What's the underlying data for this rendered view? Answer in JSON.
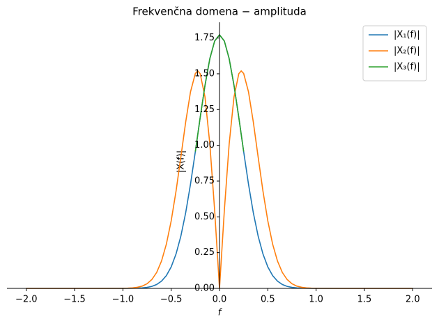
{
  "chart_data": {
    "type": "line",
    "title": "Frekvenčna domena − amplituda",
    "x_label": "f",
    "y_label": "|X(f)|",
    "x": [
      -2,
      -1.5,
      -1.25,
      -1,
      -0.95,
      -0.9,
      -0.85,
      -0.8,
      -0.75,
      -0.7,
      -0.65,
      -0.6,
      -0.55,
      -0.5,
      -0.45,
      -0.4,
      -0.35,
      -0.3,
      -0.25,
      -0.225,
      -0.2,
      -0.15,
      -0.1,
      -0.05,
      0,
      0.05,
      0.1,
      0.15,
      0.2,
      0.225,
      0.25,
      0.3,
      0.35,
      0.4,
      0.45,
      0.5,
      0.55,
      0.6,
      0.65,
      0.7,
      0.75,
      0.8,
      0.85,
      0.9,
      0.95,
      1,
      1.25,
      1.5,
      2
    ],
    "series": [
      {
        "name": "|X₁(f)|",
        "color": "#1f77b4",
        "values": [
          0,
          0,
          0,
          0.0001,
          0.0002,
          0.0006,
          0.0014,
          0.0032,
          0.0069,
          0.0141,
          0.0274,
          0.0508,
          0.0895,
          0.1503,
          0.2402,
          0.3654,
          0.529,
          0.7291,
          0.9565,
          1.0754,
          1.1944,
          1.4196,
          1.6059,
          1.7293,
          1.7725,
          1.7293,
          1.6059,
          1.4196,
          1.1944,
          1.0754,
          0.9565,
          0.7291,
          0.529,
          0.3654,
          0.2402,
          0.1503,
          0.0895,
          0.0508,
          0.0274,
          0.0141,
          0.0069,
          0.0032,
          0.0014,
          0.0006,
          0.0002,
          0.0001,
          0,
          0,
          0
        ]
      },
      {
        "name": "|X₂(f)|",
        "color": "#ff7f0e",
        "values": [
          0,
          0,
          0,
          0.0006,
          0.0014,
          0.0034,
          0.0075,
          0.0161,
          0.0325,
          0.062,
          0.1119,
          0.1915,
          0.3093,
          0.4722,
          0.6791,
          0.9183,
          1.1633,
          1.3743,
          1.5025,
          1.5203,
          1.5009,
          1.3379,
          1.009,
          0.5433,
          0,
          0.5433,
          1.009,
          1.3379,
          1.5009,
          1.5203,
          1.5025,
          1.3743,
          1.1633,
          0.9183,
          0.6791,
          0.4722,
          0.3093,
          0.1915,
          0.1119,
          0.062,
          0.0325,
          0.0161,
          0.0075,
          0.0034,
          0.0014,
          0.0006,
          0,
          0,
          0
        ]
      },
      {
        "name": "|X₃(f)|",
        "color": "#2ca02c",
        "values": [
          null,
          null,
          null,
          null,
          null,
          null,
          null,
          null,
          null,
          null,
          null,
          null,
          null,
          null,
          null,
          null,
          null,
          null,
          0.9565,
          1.0754,
          1.1944,
          1.4196,
          1.6059,
          1.7293,
          1.7725,
          1.7293,
          1.6059,
          1.4196,
          1.1944,
          1.0754,
          0.9565,
          null,
          null,
          null,
          null,
          null,
          null,
          null,
          null,
          null,
          null,
          null,
          null,
          null,
          null,
          null,
          null,
          null,
          null
        ]
      }
    ],
    "xlim": [
      -2.2,
      2.2
    ],
    "ylim": [
      0,
      1.86
    ],
    "xticks": [
      {
        "value": -2,
        "label": "−2.0"
      },
      {
        "value": -1.5,
        "label": "−1.5"
      },
      {
        "value": -1,
        "label": "−1.0"
      },
      {
        "value": -0.5,
        "label": "−0.5"
      },
      {
        "value": 0,
        "label": "0.0"
      },
      {
        "value": 0.5,
        "label": "0.5"
      },
      {
        "value": 1,
        "label": "1.0"
      },
      {
        "value": 1.5,
        "label": "1.5"
      },
      {
        "value": 2,
        "label": "2.0"
      }
    ],
    "yticks": [
      {
        "value": 0,
        "label": "0.00"
      },
      {
        "value": 0.25,
        "label": "0.25"
      },
      {
        "value": 0.5,
        "label": "0.50"
      },
      {
        "value": 0.75,
        "label": "0.75"
      },
      {
        "value": 1,
        "label": "1.00"
      },
      {
        "value": 1.25,
        "label": "1.25"
      },
      {
        "value": 1.5,
        "label": "1.50"
      },
      {
        "value": 1.75,
        "label": "1.75"
      }
    ],
    "legend": "upper right",
    "grid": false
  }
}
